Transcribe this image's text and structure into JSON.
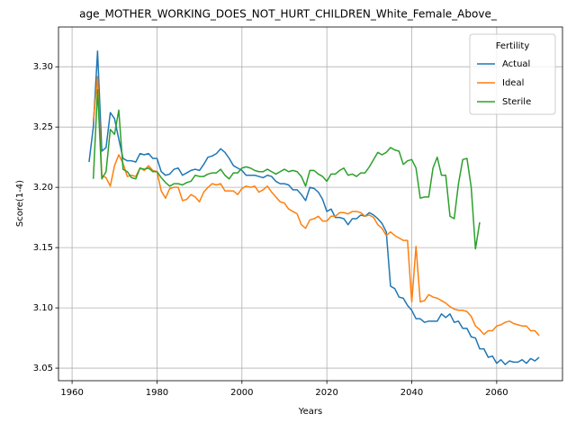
{
  "chart_data": {
    "type": "line",
    "title": "age_MOTHER_WORKING_DOES_NOT_HURT_CHILDREN_White_Female_Above_",
    "xlabel": "Years",
    "ylabel": "Score(1-4)",
    "legend_title": "Fertility",
    "legend": "upper right",
    "grid": true,
    "xlim": [
      1956.8,
      2075.5
    ],
    "xticks": [
      1960,
      1980,
      2000,
      2020,
      2040,
      2060
    ],
    "ylim": [
      3.0396,
      3.333
    ],
    "yticks": [
      3.05,
      {
        "value": 3.1,
        "label": "3.10"
      },
      3.15,
      {
        "value": 3.2,
        "label": "3.20"
      },
      3.25,
      {
        "value": 3.3,
        "label": "3.30"
      }
    ],
    "x": [
      1964,
      1965,
      1966,
      1967,
      1968,
      1969,
      1970,
      1971,
      1972,
      1973,
      1974,
      1975,
      1976,
      1977,
      1978,
      1979,
      1980,
      1981,
      1982,
      1983,
      1984,
      1985,
      1986,
      1987,
      1988,
      1989,
      1990,
      1991,
      1992,
      1993,
      1994,
      1995,
      1996,
      1997,
      1998,
      1999,
      2000,
      2001,
      2002,
      2003,
      2004,
      2005,
      2006,
      2007,
      2008,
      2009,
      2010,
      2011,
      2012,
      2013,
      2014,
      2015,
      2016,
      2017,
      2018,
      2019,
      2020,
      2021,
      2022,
      2023,
      2024,
      2025,
      2026,
      2027,
      2028,
      2029,
      2030,
      2031,
      2032,
      2033,
      2034,
      2035,
      2036,
      2037,
      2038,
      2039,
      2040,
      2041,
      2042,
      2043,
      2044,
      2045,
      2046,
      2047,
      2048,
      2049,
      2050,
      2051,
      2052,
      2053,
      2054,
      2055,
      2056,
      2057,
      2058,
      2059,
      2060,
      2061,
      2062,
      2063,
      2064,
      2065,
      2066,
      2067,
      2068,
      2069,
      2070
    ],
    "series": [
      {
        "name": "Actual",
        "color": "#1f77b4",
        "values": [
          3.221,
          3.25,
          3.313,
          3.23,
          3.233,
          3.262,
          3.257,
          3.24,
          3.224,
          3.222,
          3.222,
          3.221,
          3.228,
          3.227,
          3.228,
          3.224,
          3.224,
          3.213,
          3.21,
          3.211,
          3.215,
          3.216,
          3.21,
          3.212,
          3.214,
          3.215,
          3.214,
          3.219,
          3.225,
          3.226,
          3.228,
          3.232,
          3.229,
          3.224,
          3.218,
          3.216,
          3.214,
          3.21,
          3.21,
          3.21,
          3.209,
          3.208,
          3.21,
          3.209,
          3.205,
          3.203,
          3.203,
          3.202,
          3.198,
          3.198,
          3.194,
          3.189,
          3.2,
          3.199,
          3.196,
          3.19,
          3.18,
          3.182,
          3.175,
          3.175,
          3.174,
          3.169,
          3.174,
          3.174,
          3.177,
          3.176,
          3.179,
          3.177,
          3.174,
          3.17,
          3.163,
          3.118,
          3.116,
          3.109,
          3.108,
          3.102,
          3.098,
          3.091,
          3.091,
          3.088,
          3.089,
          3.089,
          3.089,
          3.095,
          3.092,
          3.095,
          3.088,
          3.089,
          3.083,
          3.083,
          3.076,
          3.075,
          3.066,
          3.066,
          3.059,
          3.06,
          3.054,
          3.057,
          3.053,
          3.056,
          3.055,
          3.055,
          3.057,
          3.054,
          3.058,
          3.056,
          3.059
        ]
      },
      {
        "name": "Ideal",
        "color": "#ff7f0e",
        "values": [
          null,
          3.255,
          3.292,
          3.21,
          3.208,
          3.201,
          3.218,
          3.227,
          3.22,
          3.209,
          3.21,
          3.209,
          3.216,
          3.214,
          3.218,
          3.214,
          3.213,
          3.197,
          3.191,
          3.199,
          3.2,
          3.2,
          3.189,
          3.19,
          3.194,
          3.192,
          3.188,
          3.196,
          3.2,
          3.203,
          3.202,
          3.203,
          3.197,
          3.197,
          3.197,
          3.194,
          3.199,
          3.201,
          3.2,
          3.201,
          3.196,
          3.198,
          3.201,
          3.196,
          3.192,
          3.188,
          3.187,
          3.182,
          3.18,
          3.178,
          3.169,
          3.166,
          3.173,
          3.174,
          3.176,
          3.172,
          3.172,
          3.176,
          3.176,
          3.179,
          3.179,
          3.178,
          3.18,
          3.18,
          3.179,
          3.176,
          3.177,
          3.175,
          3.169,
          3.166,
          3.16,
          3.163,
          3.16,
          3.158,
          3.156,
          3.156,
          3.105,
          3.151,
          3.105,
          3.106,
          3.111,
          3.109,
          3.108,
          3.106,
          3.104,
          3.101,
          3.099,
          3.098,
          3.098,
          3.097,
          3.093,
          3.085,
          3.082,
          3.078,
          3.081,
          3.081,
          3.085,
          3.086,
          3.088,
          3.089,
          3.087,
          3.086,
          3.085,
          3.085,
          3.081,
          3.081,
          3.077
        ]
      },
      {
        "name": "Sterile",
        "color": "#2ca02c",
        "values": [
          null,
          3.207,
          3.281,
          3.207,
          3.213,
          3.248,
          3.244,
          3.264,
          3.215,
          3.213,
          3.208,
          3.207,
          3.216,
          3.215,
          3.216,
          3.213,
          3.213,
          3.208,
          3.204,
          3.201,
          3.203,
          3.203,
          3.202,
          3.204,
          3.205,
          3.21,
          3.209,
          3.209,
          3.211,
          3.212,
          3.212,
          3.215,
          3.21,
          3.207,
          3.212,
          3.212,
          3.216,
          3.217,
          3.216,
          3.214,
          3.213,
          3.213,
          3.215,
          3.213,
          3.211,
          3.213,
          3.215,
          3.213,
          3.214,
          3.213,
          3.209,
          3.201,
          3.214,
          3.214,
          3.211,
          3.209,
          3.205,
          3.211,
          3.211,
          3.214,
          3.216,
          3.21,
          3.211,
          3.209,
          3.212,
          3.212,
          3.217,
          3.223,
          3.229,
          3.227,
          3.229,
          3.233,
          3.231,
          3.23,
          3.219,
          3.222,
          3.223,
          3.216,
          3.191,
          3.192,
          3.192,
          3.216,
          3.225,
          3.21,
          3.21,
          3.176,
          3.174,
          3.203,
          3.223,
          3.224,
          3.2,
          3.149,
          3.171,
          null,
          null,
          null,
          null,
          null,
          null,
          null,
          null,
          null,
          null,
          null,
          null,
          null,
          null
        ]
      }
    ]
  }
}
